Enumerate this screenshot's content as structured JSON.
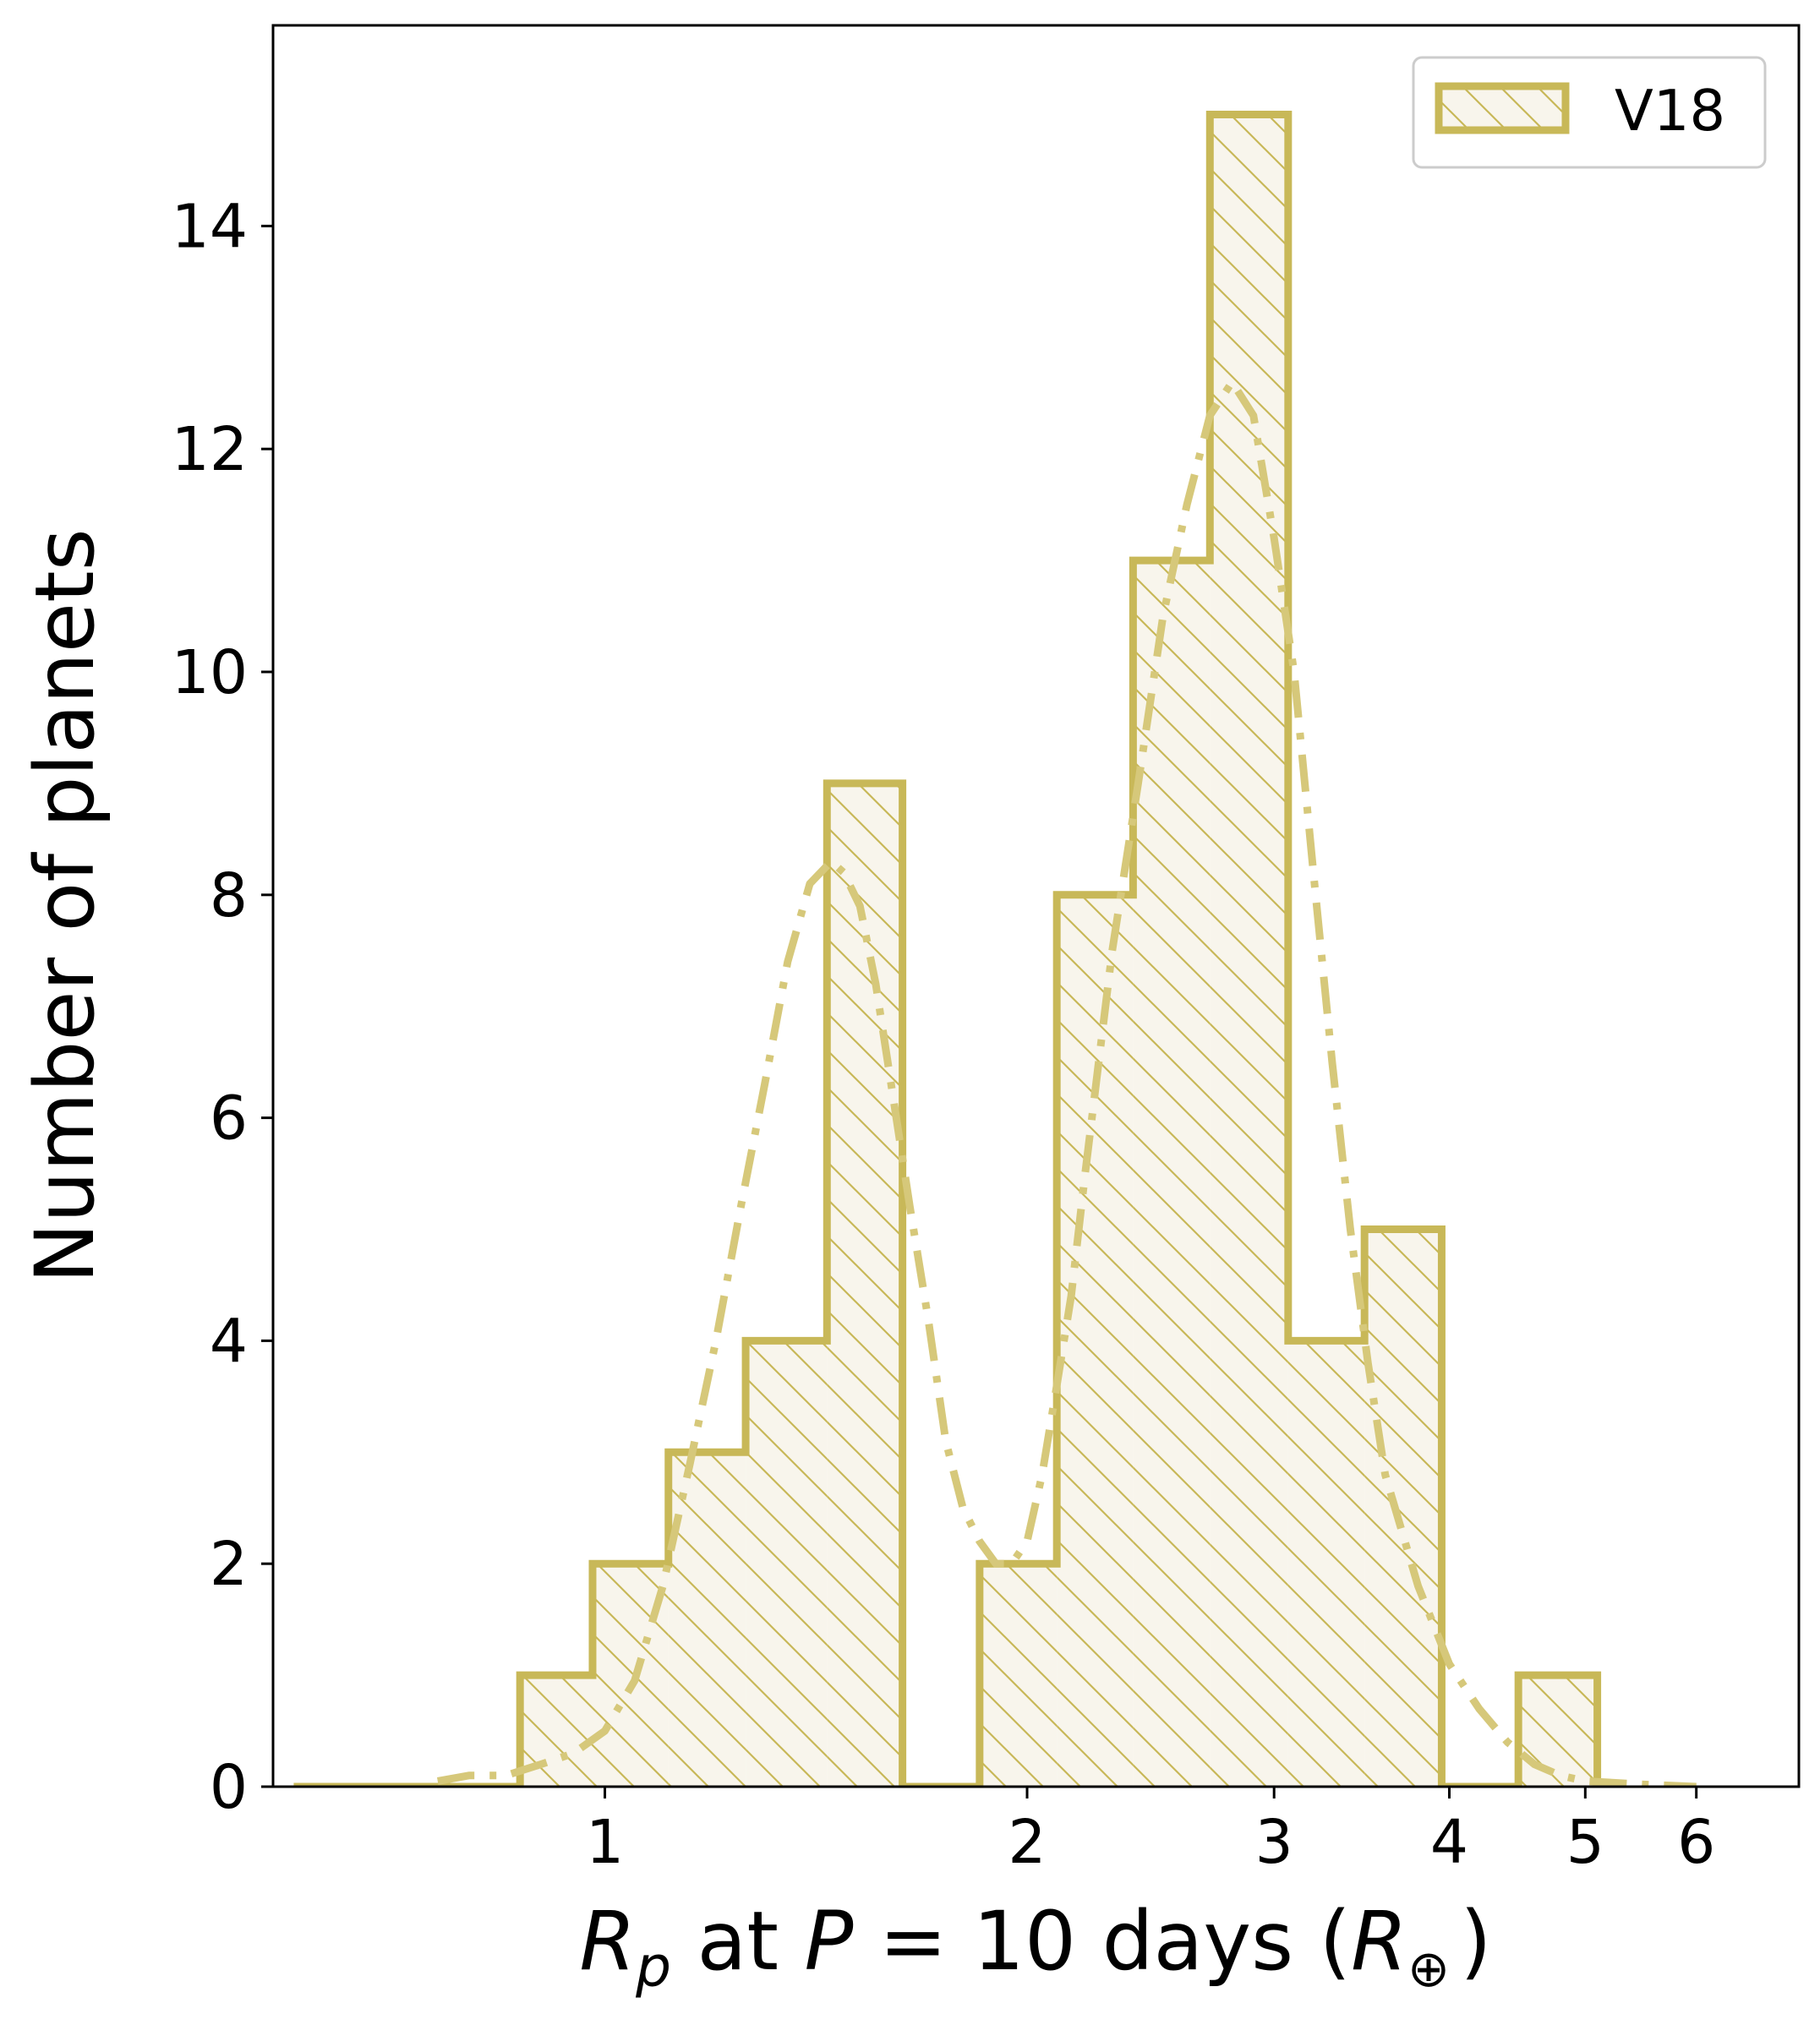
{
  "chart_data": {
    "type": "histogram",
    "xscale": "log",
    "xlim": [
      0.58,
      7.1
    ],
    "ylim": [
      0,
      15.8
    ],
    "xticks": [
      {
        "value": 1,
        "label": "1"
      },
      {
        "value": 2,
        "label": "2"
      },
      {
        "value": 3,
        "label": "3"
      },
      {
        "value": 4,
        "label": "4"
      },
      {
        "value": 5,
        "label": "5"
      },
      {
        "value": 6,
        "label": "6"
      }
    ],
    "yticks": [
      {
        "value": 0,
        "label": "0"
      },
      {
        "value": 2,
        "label": "2"
      },
      {
        "value": 4,
        "label": "4"
      },
      {
        "value": 6,
        "label": "6"
      },
      {
        "value": 8,
        "label": "8"
      },
      {
        "value": 10,
        "label": "10"
      },
      {
        "value": 12,
        "label": "12"
      },
      {
        "value": 14,
        "label": "14"
      }
    ],
    "xlabel": {
      "r": "R",
      "r_sub": "p",
      "mid": " at ",
      "p": "P",
      "eq": " = 10 days (",
      "re": "R",
      "re_sub": "⊕",
      "close": ")"
    },
    "ylabel": "Number of planets",
    "series": [
      {
        "name": "V18",
        "color": "#c8b858",
        "fill": "#f8f5ec",
        "hatch": "\\",
        "bin_edges": [
          0.6,
          0.87,
          0.98,
          1.11,
          1.26,
          1.44,
          1.63,
          1.85,
          2.1,
          2.38,
          2.7,
          3.07,
          3.48,
          3.95,
          4.48,
          5.1
        ],
        "counts": [
          0,
          1,
          2,
          3,
          4,
          9,
          0,
          2,
          8,
          11,
          15,
          4,
          5,
          0,
          1
        ]
      }
    ],
    "fit_curve": {
      "style": "dash-dot",
      "color": "#d6c87a",
      "x": [
        0.76,
        0.8,
        0.85,
        0.9,
        0.95,
        1.0,
        1.05,
        1.1,
        1.15,
        1.2,
        1.25,
        1.3,
        1.35,
        1.4,
        1.45,
        1.48,
        1.52,
        1.56,
        1.6,
        1.65,
        1.7,
        1.75,
        1.8,
        1.85,
        1.9,
        1.95,
        2.0,
        2.05,
        2.1,
        2.15,
        2.2,
        2.3,
        2.4,
        2.5,
        2.6,
        2.7,
        2.8,
        2.9,
        3.0,
        3.1,
        3.2,
        3.3,
        3.4,
        3.5,
        3.6,
        3.8,
        4.0,
        4.2,
        4.4,
        4.6,
        4.8,
        5.0,
        5.5,
        6.0
      ],
      "y": [
        0.05,
        0.1,
        0.1,
        0.2,
        0.3,
        0.5,
        0.95,
        1.8,
        2.9,
        4.0,
        5.2,
        6.3,
        7.4,
        8.1,
        8.3,
        8.2,
        7.9,
        7.2,
        6.3,
        5.2,
        4.2,
        3.1,
        2.5,
        2.2,
        2.0,
        2.0,
        2.2,
        2.8,
        3.6,
        4.4,
        5.5,
        7.5,
        9.0,
        10.5,
        11.5,
        12.3,
        12.6,
        12.3,
        11.2,
        10.0,
        8.2,
        6.5,
        5.0,
        3.8,
        2.8,
        1.8,
        1.1,
        0.7,
        0.4,
        0.2,
        0.1,
        0.05,
        0.02,
        0.0
      ]
    },
    "legend": {
      "position": "top-right",
      "entries": [
        "V18"
      ]
    }
  }
}
